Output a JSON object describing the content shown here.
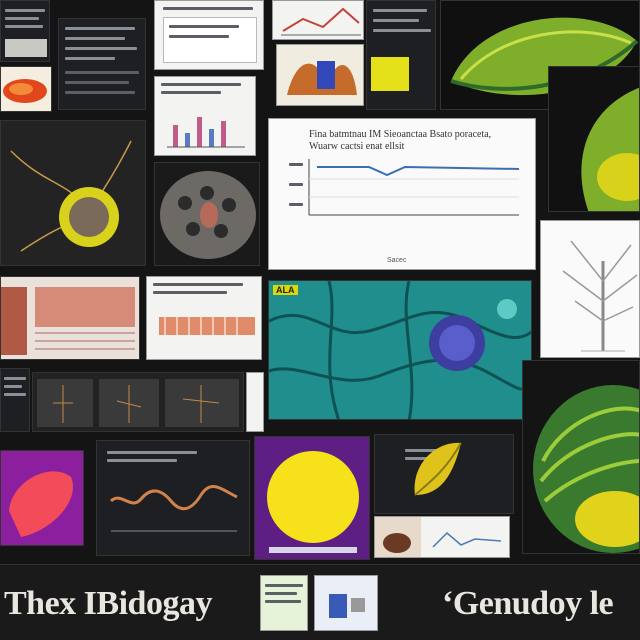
{
  "caption": {
    "left": "Thex IBidogay",
    "right": "‘Genudoy le"
  },
  "panels": {
    "line_chart_title": "Fina batmtnau IM Sieoanctaa Bsato poraceta, Wuarw cactsi enat ellsit",
    "line_chart_footer": "Sacec",
    "cell_badge": "ALA"
  },
  "icons": {
    "cell_diagram": "cell-icon",
    "leaf_diagram": "leaf-icon",
    "tree_diagram": "tree-icon"
  }
}
